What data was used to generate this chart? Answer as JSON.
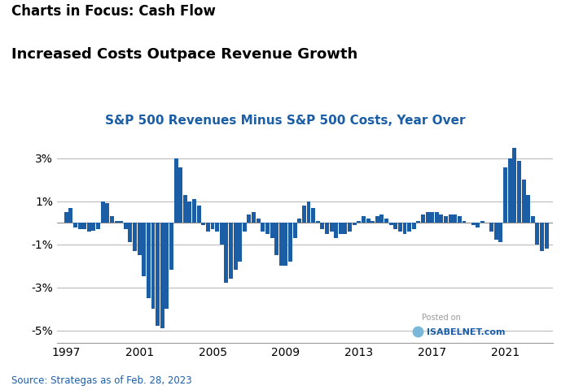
{
  "title1": "Charts in Focus: Cash Flow",
  "title2": "Increased Costs Outpace Revenue Growth",
  "chart_title": "S&P 500 Revenues Minus S&P 500 Costs, Year Over",
  "source_text": "Source: Strategas as of Feb. 28, 2023",
  "watermark_line1": "Posted on",
  "watermark_line2": "ISABELNET.com",
  "bar_color": "#1b5ea6",
  "background_color": "#ffffff",
  "yticks": [
    -5,
    -3,
    -1,
    1,
    3
  ],
  "ytick_labels": [
    "-5%",
    "-3%",
    "-1%",
    "1%",
    "3%"
  ],
  "xtick_years": [
    1997,
    2001,
    2005,
    2009,
    2013,
    2017,
    2021
  ],
  "ylim": [
    -5.6,
    4.2
  ],
  "xlim_start": 1996.5,
  "xlim_end": 2023.6,
  "series": [
    [
      1997.0,
      0.5
    ],
    [
      1997.25,
      0.7
    ],
    [
      1997.5,
      -0.2
    ],
    [
      1997.75,
      -0.3
    ],
    [
      1998.0,
      -0.3
    ],
    [
      1998.25,
      -0.4
    ],
    [
      1998.5,
      -0.35
    ],
    [
      1998.75,
      -0.3
    ],
    [
      1999.0,
      1.0
    ],
    [
      1999.25,
      0.9
    ],
    [
      1999.5,
      0.3
    ],
    [
      1999.75,
      0.1
    ],
    [
      2000.0,
      0.1
    ],
    [
      2000.25,
      -0.3
    ],
    [
      2000.5,
      -0.9
    ],
    [
      2000.75,
      -1.3
    ],
    [
      2001.0,
      -1.5
    ],
    [
      2001.25,
      -2.5
    ],
    [
      2001.5,
      -3.5
    ],
    [
      2001.75,
      -4.0
    ],
    [
      2002.0,
      -4.8
    ],
    [
      2002.25,
      -4.9
    ],
    [
      2002.5,
      -4.0
    ],
    [
      2002.75,
      -2.2
    ],
    [
      2003.0,
      3.0
    ],
    [
      2003.25,
      2.6
    ],
    [
      2003.5,
      1.3
    ],
    [
      2003.75,
      1.0
    ],
    [
      2004.0,
      1.1
    ],
    [
      2004.25,
      0.8
    ],
    [
      2004.5,
      -0.1
    ],
    [
      2004.75,
      -0.4
    ],
    [
      2005.0,
      -0.3
    ],
    [
      2005.25,
      -0.4
    ],
    [
      2005.5,
      -1.0
    ],
    [
      2005.75,
      -2.8
    ],
    [
      2006.0,
      -2.6
    ],
    [
      2006.25,
      -2.2
    ],
    [
      2006.5,
      -1.8
    ],
    [
      2006.75,
      -0.4
    ],
    [
      2007.0,
      0.4
    ],
    [
      2007.25,
      0.5
    ],
    [
      2007.5,
      0.2
    ],
    [
      2007.75,
      -0.4
    ],
    [
      2008.0,
      -0.5
    ],
    [
      2008.25,
      -0.7
    ],
    [
      2008.5,
      -1.5
    ],
    [
      2008.75,
      -2.0
    ],
    [
      2009.0,
      -2.0
    ],
    [
      2009.25,
      -1.8
    ],
    [
      2009.5,
      -0.7
    ],
    [
      2009.75,
      0.2
    ],
    [
      2010.0,
      0.8
    ],
    [
      2010.25,
      1.0
    ],
    [
      2010.5,
      0.7
    ],
    [
      2010.75,
      0.1
    ],
    [
      2011.0,
      -0.3
    ],
    [
      2011.25,
      -0.5
    ],
    [
      2011.5,
      -0.4
    ],
    [
      2011.75,
      -0.7
    ],
    [
      2012.0,
      -0.5
    ],
    [
      2012.25,
      -0.5
    ],
    [
      2012.5,
      -0.4
    ],
    [
      2012.75,
      -0.1
    ],
    [
      2013.0,
      0.1
    ],
    [
      2013.25,
      0.3
    ],
    [
      2013.5,
      0.2
    ],
    [
      2013.75,
      0.1
    ],
    [
      2014.0,
      0.3
    ],
    [
      2014.25,
      0.4
    ],
    [
      2014.5,
      0.2
    ],
    [
      2014.75,
      -0.1
    ],
    [
      2015.0,
      -0.3
    ],
    [
      2015.25,
      -0.4
    ],
    [
      2015.5,
      -0.5
    ],
    [
      2015.75,
      -0.4
    ],
    [
      2016.0,
      -0.3
    ],
    [
      2016.25,
      0.1
    ],
    [
      2016.5,
      0.4
    ],
    [
      2016.75,
      0.5
    ],
    [
      2017.0,
      0.5
    ],
    [
      2017.25,
      0.5
    ],
    [
      2017.5,
      0.4
    ],
    [
      2017.75,
      0.3
    ],
    [
      2018.0,
      0.4
    ],
    [
      2018.25,
      0.4
    ],
    [
      2018.5,
      0.3
    ],
    [
      2018.75,
      0.1
    ],
    [
      2019.0,
      0.0
    ],
    [
      2019.25,
      -0.1
    ],
    [
      2019.5,
      -0.2
    ],
    [
      2019.75,
      0.1
    ],
    [
      2020.0,
      0.0
    ],
    [
      2020.25,
      -0.4
    ],
    [
      2020.5,
      -0.8
    ],
    [
      2020.75,
      -0.9
    ],
    [
      2021.0,
      2.6
    ],
    [
      2021.25,
      3.0
    ],
    [
      2021.5,
      3.5
    ],
    [
      2021.75,
      2.9
    ],
    [
      2022.0,
      2.0
    ],
    [
      2022.25,
      1.3
    ],
    [
      2022.5,
      0.3
    ],
    [
      2022.75,
      -1.0
    ],
    [
      2023.0,
      -1.3
    ],
    [
      2023.25,
      -1.2
    ]
  ]
}
